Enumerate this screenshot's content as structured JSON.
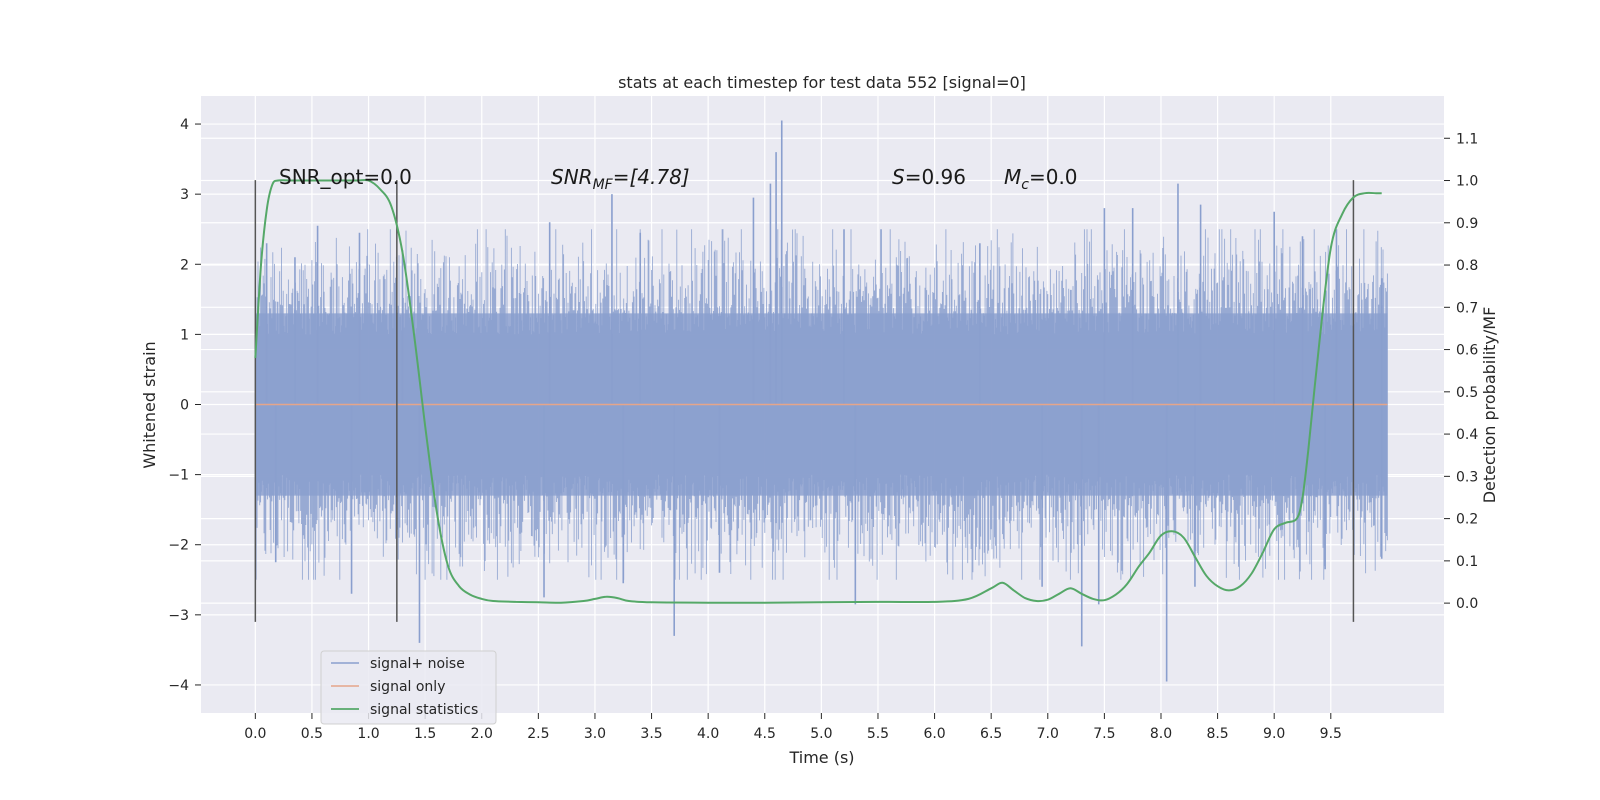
{
  "chart_data": {
    "type": "line",
    "title": "stats at each timestep for test data 552 [signal=0]",
    "xlabel": "Time (s)",
    "ylabel": "Whitened strain",
    "ylabel_right": "Detection probability/MF",
    "xlim": [
      -0.48,
      10.5
    ],
    "ylim": [
      -4.4,
      4.4
    ],
    "ylim_right": [
      -0.26,
      1.2
    ],
    "x_ticks": [
      0.0,
      0.5,
      1.0,
      1.5,
      2.0,
      2.5,
      3.0,
      3.5,
      4.0,
      4.5,
      5.0,
      5.5,
      6.0,
      6.5,
      7.0,
      7.5,
      8.0,
      8.5,
      9.0,
      9.5
    ],
    "y_ticks": [
      -4,
      -3,
      -2,
      -1,
      0,
      1,
      2,
      3,
      4
    ],
    "y_ticks_right": [
      0.0,
      0.1,
      0.2,
      0.3,
      0.4,
      0.5,
      0.6,
      0.7,
      0.8,
      0.9,
      1.0,
      1.1
    ],
    "grid": true,
    "legend_position": "lower-left",
    "annotations": {
      "snr_opt": "SNR_opt=0.0",
      "snr_mf_main": "SNR",
      "snr_mf_sub": "MF",
      "snr_mf_rest": "=[4.78]",
      "s_sym": "S",
      "s_rest": "=0.96",
      "mc_sym": "M",
      "mc_sub": "c",
      "mc_rest": "=0.0"
    },
    "vlines": [
      {
        "x": 0.0,
        "ymin": -3.1,
        "ymax": 3.2
      },
      {
        "x": 1.25,
        "ymin": -3.1,
        "ymax": 3.2
      },
      {
        "x": 9.7,
        "ymin": -3.1,
        "ymax": 3.2
      }
    ],
    "noise": {
      "x_start": 0.0,
      "x_end": 10.0,
      "typical_low": -1.3,
      "typical_high": 1.3,
      "max": 4.05,
      "min": -3.95
    },
    "noise_spikes": [
      [
        0.1,
        2.3
      ],
      [
        0.35,
        2.1
      ],
      [
        0.55,
        2.55
      ],
      [
        0.92,
        2.45
      ],
      [
        1.3,
        2.2
      ],
      [
        2.6,
        2.6
      ],
      [
        3.15,
        3.0
      ],
      [
        3.4,
        2.45
      ],
      [
        4.4,
        2.95
      ],
      [
        4.55,
        3.15
      ],
      [
        4.6,
        3.6
      ],
      [
        4.65,
        4.05
      ],
      [
        5.2,
        2.5
      ],
      [
        6.4,
        2.3
      ],
      [
        7.5,
        2.8
      ],
      [
        7.75,
        2.8
      ],
      [
        8.15,
        3.15
      ],
      [
        8.35,
        2.85
      ],
      [
        9.0,
        2.75
      ],
      [
        9.25,
        2.4
      ],
      [
        9.55,
        2.5
      ],
      [
        9.95,
        1.8
      ],
      [
        0.18,
        -2.25
      ],
      [
        0.85,
        -2.7
      ],
      [
        1.45,
        -3.4
      ],
      [
        2.55,
        -2.75
      ],
      [
        3.25,
        -2.55
      ],
      [
        3.7,
        -3.3
      ],
      [
        4.1,
        -2.4
      ],
      [
        5.3,
        -2.85
      ],
      [
        6.95,
        -2.6
      ],
      [
        7.3,
        -3.45
      ],
      [
        7.45,
        -2.85
      ],
      [
        8.05,
        -3.95
      ],
      [
        8.3,
        -2.6
      ],
      [
        9.45,
        -2.35
      ],
      [
        9.95,
        -2.2
      ]
    ],
    "series": [
      {
        "name": "signal+ noise",
        "color": "#8a9fce",
        "kind": "noise"
      },
      {
        "name": "signal only",
        "color": "#e5a58a",
        "kind": "line",
        "x": [
          0.0,
          10.0
        ],
        "y": [
          0.0,
          0.0
        ]
      },
      {
        "name": "signal statistics",
        "color": "#55a868",
        "kind": "line",
        "axis": "right",
        "x": [
          0.0,
          0.05,
          0.1,
          0.15,
          0.2,
          0.3,
          0.5,
          0.7,
          0.9,
          1.0,
          1.1,
          1.2,
          1.3,
          1.4,
          1.5,
          1.6,
          1.7,
          1.8,
          1.9,
          2.0,
          2.1,
          2.3,
          2.5,
          2.7,
          2.9,
          3.0,
          3.1,
          3.2,
          3.3,
          3.5,
          4.0,
          4.5,
          5.0,
          5.5,
          6.0,
          6.3,
          6.5,
          6.6,
          6.7,
          6.8,
          6.9,
          7.0,
          7.1,
          7.2,
          7.3,
          7.4,
          7.5,
          7.6,
          7.7,
          7.8,
          7.9,
          8.0,
          8.1,
          8.2,
          8.3,
          8.4,
          8.5,
          8.6,
          8.7,
          8.8,
          8.9,
          9.0,
          9.1,
          9.2,
          9.25,
          9.3,
          9.4,
          9.5,
          9.6,
          9.7,
          9.8,
          9.9,
          9.95
        ],
        "y": [
          0.58,
          0.8,
          0.93,
          0.99,
          1.0,
          1.0,
          1.0,
          1.0,
          1.0,
          1.0,
          0.98,
          0.94,
          0.83,
          0.64,
          0.42,
          0.22,
          0.09,
          0.04,
          0.02,
          0.01,
          0.005,
          0.003,
          0.002,
          0.001,
          0.005,
          0.01,
          0.015,
          0.012,
          0.005,
          0.002,
          0.001,
          0.001,
          0.002,
          0.003,
          0.003,
          0.01,
          0.035,
          0.048,
          0.03,
          0.012,
          0.005,
          0.008,
          0.022,
          0.035,
          0.022,
          0.01,
          0.007,
          0.02,
          0.045,
          0.085,
          0.12,
          0.16,
          0.17,
          0.155,
          0.11,
          0.065,
          0.04,
          0.03,
          0.04,
          0.07,
          0.12,
          0.175,
          0.19,
          0.2,
          0.25,
          0.36,
          0.62,
          0.84,
          0.92,
          0.96,
          0.97,
          0.97,
          0.97
        ]
      }
    ]
  }
}
